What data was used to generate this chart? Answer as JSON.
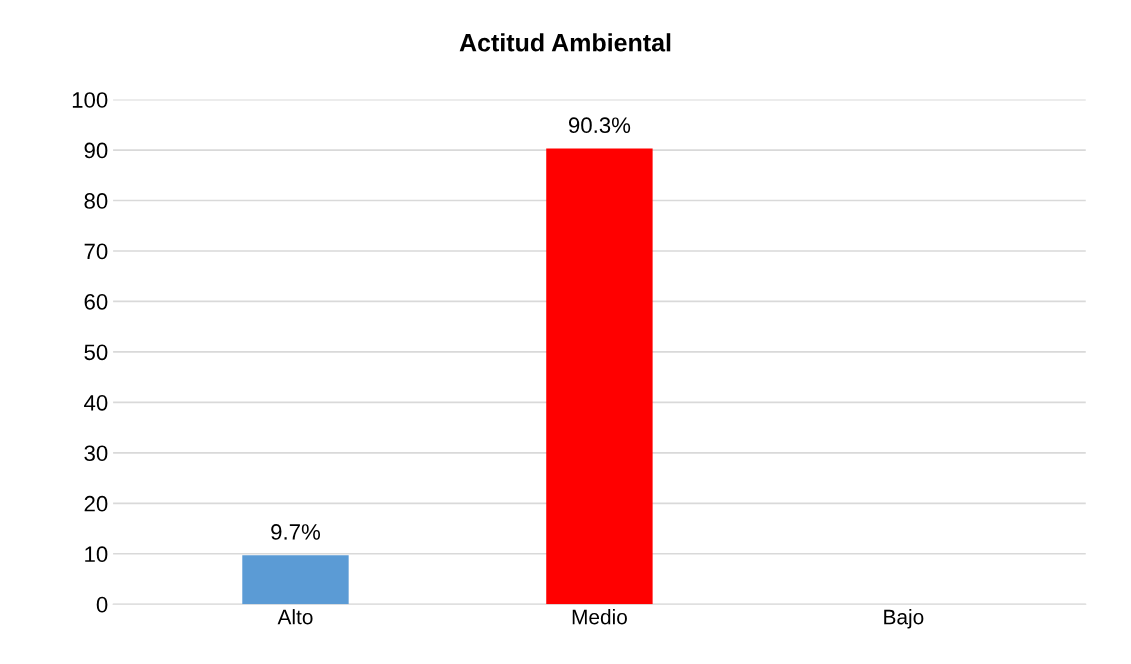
{
  "chart_data": {
    "type": "bar",
    "title": "Actitud Ambiental",
    "categories": [
      "Alto",
      "Medio",
      "Bajo"
    ],
    "values": [
      9.7,
      90.3,
      0
    ],
    "colors": [
      "#5b9bd5",
      "#ff0000",
      "#1f2d3d"
    ],
    "value_labels": [
      "9.7%",
      "90.3%",
      null
    ],
    "ylim": [
      0,
      100
    ],
    "yticks": [
      0,
      10,
      20,
      30,
      40,
      50,
      60,
      70,
      80,
      90,
      100
    ],
    "grid": "y",
    "legend": false
  }
}
